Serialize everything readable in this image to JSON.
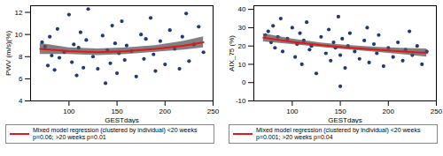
{
  "chart_data": [
    {
      "type": "scatter",
      "x_label": "GESTdays",
      "y_label": "PWV (m/s)(%)",
      "xlim": [
        60,
        250
      ],
      "xticks": [
        100,
        150,
        200,
        250
      ],
      "ylim": [
        4,
        12.6
      ],
      "yticks": [
        4,
        6,
        8,
        10,
        12
      ],
      "legend": "bottom",
      "series": [
        {
          "type": "scatter",
          "color": "#1f3a7a",
          "marker": "circle",
          "x": [
            72,
            75,
            78,
            80,
            82,
            85,
            88,
            90,
            95,
            100,
            103,
            105,
            108,
            110,
            112,
            115,
            118,
            120,
            125,
            130,
            135,
            138,
            140,
            143,
            145,
            148,
            150,
            152,
            155,
            158,
            160,
            165,
            170,
            175,
            178,
            180,
            185,
            188,
            190,
            195,
            200,
            205,
            210,
            215,
            218,
            222,
            225,
            230,
            235,
            240
          ],
          "values": [
            9.3,
            8.9,
            7.2,
            9.8,
            8.1,
            6.8,
            10.5,
            7.9,
            8.4,
            11.8,
            7.5,
            9.1,
            6.3,
            8.8,
            10.2,
            7.0,
            9.5,
            12.3,
            8.0,
            6.9,
            9.9,
            5.6,
            8.6,
            7.4,
            10.8,
            9.2,
            6.5,
            8.3,
            11.2,
            7.7,
            9.0,
            8.5,
            6.2,
            10.0,
            7.8,
            9.6,
            11.5,
            8.2,
            6.7,
            9.4,
            7.3,
            10.4,
            8.7,
            6.9,
            9.8,
            11.9,
            7.6,
            9.1,
            10.7,
            8.4
          ]
        },
        {
          "type": "line",
          "name": "Mixed model regression (clustered by individual) <20 weeks p=0.06; >20 weeks p=0.01",
          "color": "#e8141c",
          "x": [
            70,
            100,
            130,
            160,
            190,
            220,
            240
          ],
          "values": [
            8.7,
            8.5,
            8.4,
            8.5,
            8.7,
            9.0,
            9.3
          ],
          "ci_lower": [
            8.2,
            8.2,
            8.1,
            8.2,
            8.4,
            8.6,
            8.8
          ],
          "ci_upper": [
            9.2,
            8.8,
            8.7,
            8.8,
            9.0,
            9.4,
            9.8
          ]
        }
      ]
    },
    {
      "type": "scatter",
      "x_label": "GESTdays",
      "y_label": "AIX_75 (%)",
      "xlim": [
        60,
        250
      ],
      "xticks": [
        100,
        150,
        200,
        250
      ],
      "ylim": [
        -10,
        42
      ],
      "yticks": [
        -10,
        0,
        10,
        20,
        30,
        40
      ],
      "legend": "bottom",
      "series": [
        {
          "type": "scatter",
          "color": "#1f3a7a",
          "marker": "circle",
          "x": [
            72,
            75,
            78,
            80,
            82,
            85,
            88,
            90,
            95,
            100,
            103,
            105,
            108,
            110,
            112,
            115,
            118,
            120,
            125,
            130,
            135,
            138,
            140,
            143,
            145,
            148,
            150,
            150,
            152,
            155,
            158,
            160,
            165,
            170,
            175,
            178,
            180,
            185,
            188,
            190,
            195,
            200,
            205,
            210,
            215,
            218,
            222,
            225,
            230,
            235,
            240
          ],
          "values": [
            26,
            28,
            22,
            31,
            19,
            25,
            35,
            17,
            24,
            30,
            14,
            21,
            27,
            10,
            23,
            33,
            18,
            20,
            5,
            25,
            16,
            29,
            12,
            22,
            19,
            36,
            15,
            -2,
            24,
            8,
            20,
            27,
            17,
            13,
            23,
            30,
            11,
            21,
            16,
            26,
            9,
            19,
            14,
            22,
            12,
            18,
            28,
            15,
            20,
            10,
            17
          ]
        },
        {
          "type": "line",
          "name": "Mixed model regression (clustered by individual) <20 weeks p=0.001; >20 weeks p=0.04",
          "color": "#e8141c",
          "x": [
            70,
            100,
            130,
            160,
            190,
            220,
            240
          ],
          "values": [
            24.5,
            22.3,
            20.4,
            19.0,
            17.9,
            16.8,
            16.2
          ],
          "ci_lower": [
            22.3,
            20.8,
            19.2,
            17.8,
            16.5,
            15.0,
            14.0
          ],
          "ci_upper": [
            26.7,
            23.8,
            21.6,
            20.2,
            19.3,
            18.6,
            18.4
          ]
        }
      ]
    }
  ]
}
